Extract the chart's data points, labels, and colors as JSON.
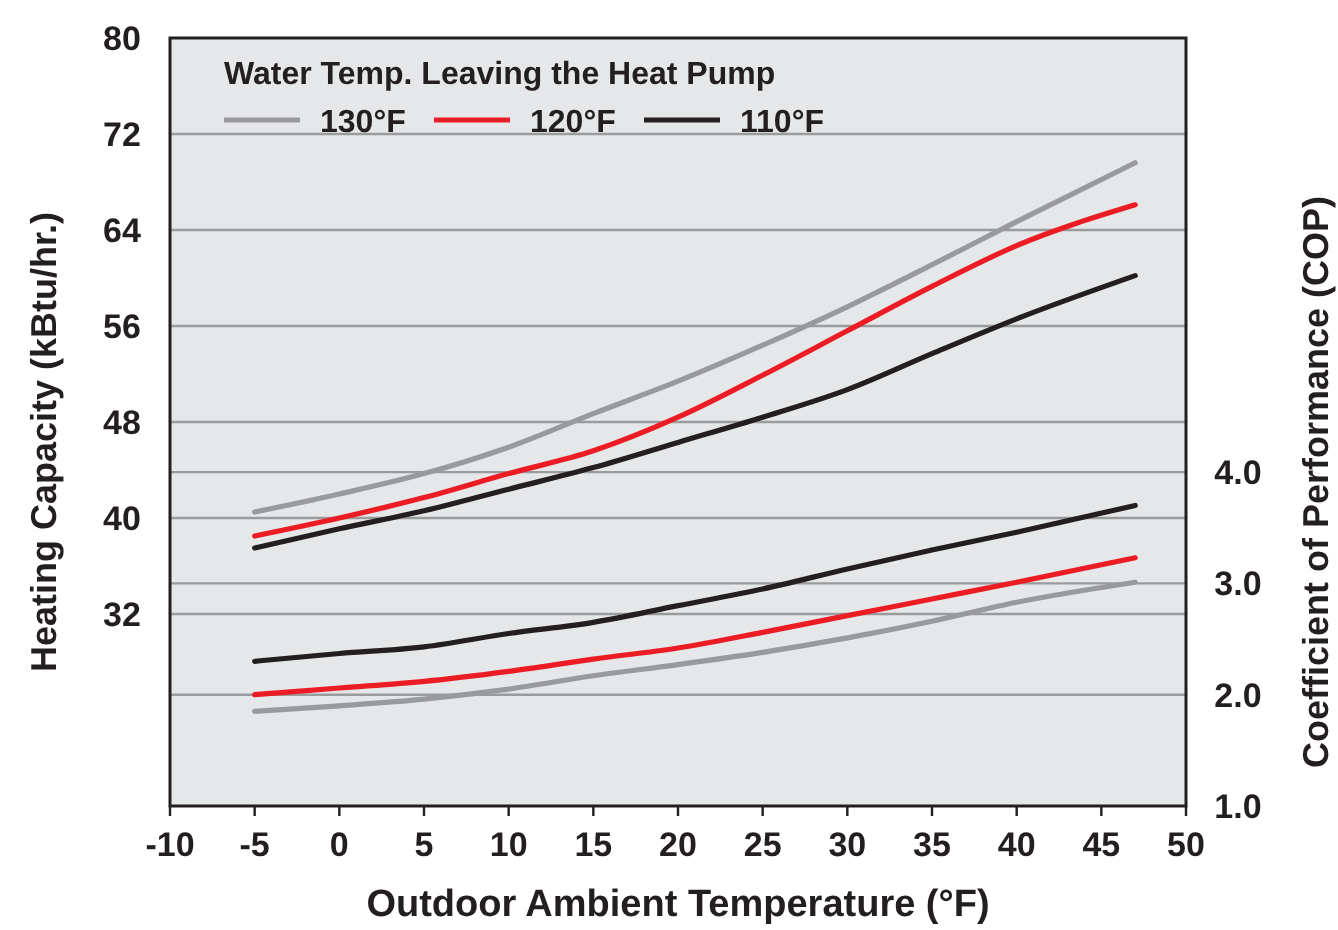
{
  "chart_data": {
    "type": "line",
    "xlabel": "Outdoor Ambient Temperature (°F)",
    "ylabel": "Heating Capacity (kBtu/hr.)",
    "y2label": "Coefficient of Performance (COP)",
    "legend_title": "Water Temp. Leaving the Heat Pump",
    "legend": "top left",
    "grid": "y",
    "marker": "none",
    "line_style": "solid",
    "x": [
      -5,
      0,
      5,
      10,
      15,
      20,
      25,
      30,
      35,
      40,
      47
    ],
    "xlim": [
      -10,
      50
    ],
    "xticks": [
      -10,
      -5,
      0,
      5,
      10,
      15,
      20,
      25,
      30,
      35,
      40,
      45,
      50
    ],
    "ylim": [
      16,
      80
    ],
    "yticks": [
      32,
      40,
      48,
      56,
      64,
      72,
      80
    ],
    "y2lim": [
      1,
      7.9
    ],
    "y2ticks": [
      {
        "value": 1,
        "label": "1.0"
      },
      {
        "value": 2,
        "label": "2.0"
      },
      {
        "value": 3,
        "label": "3.0"
      },
      {
        "value": 4,
        "label": "4.0"
      }
    ],
    "series": [
      {
        "name": "130°F",
        "color": "#999a9c",
        "values": [
          40.5,
          42.0,
          43.7,
          45.9,
          48.7,
          51.4,
          54.4,
          57.6,
          61.1,
          64.7,
          69.6
        ]
      },
      {
        "name": "120°F",
        "color": "#ec1c24",
        "values": [
          38.5,
          40.0,
          41.7,
          43.7,
          45.6,
          48.4,
          51.9,
          55.6,
          59.3,
          62.7,
          66.1
        ]
      },
      {
        "name": "110°F",
        "color": "#231f20",
        "values": [
          37.5,
          39.1,
          40.6,
          42.4,
          44.2,
          46.3,
          48.4,
          50.7,
          53.7,
          56.6,
          60.2
        ]
      },
      {
        "color": "#999a9c",
        "axis": "y2",
        "values": [
          1.85,
          1.9,
          1.96,
          2.05,
          2.17,
          2.27,
          2.38,
          2.51,
          2.66,
          2.83,
          3.01
        ]
      },
      {
        "color": "#ec1c24",
        "axis": "y2",
        "values": [
          2.0,
          2.06,
          2.12,
          2.21,
          2.32,
          2.42,
          2.56,
          2.71,
          2.86,
          3.01,
          3.23
        ]
      },
      {
        "color": "#231f20",
        "axis": "y2",
        "values": [
          2.3,
          2.37,
          2.43,
          2.55,
          2.65,
          2.8,
          2.95,
          3.13,
          3.3,
          3.46,
          3.7
        ]
      }
    ]
  }
}
